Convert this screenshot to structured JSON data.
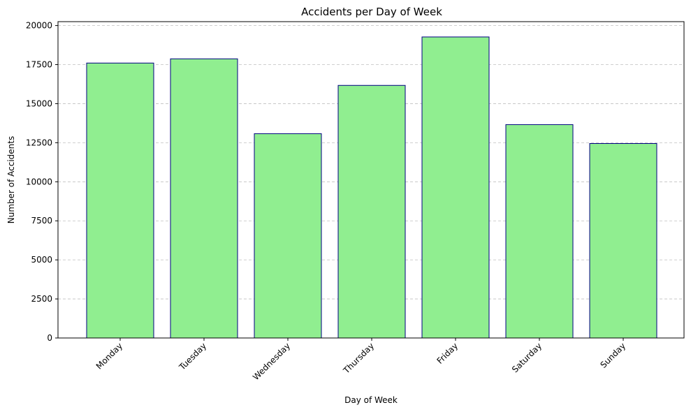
{
  "chart_data": {
    "type": "bar",
    "title": "Accidents per Day of Week",
    "xlabel": "Day of Week",
    "ylabel": "Number of Accidents",
    "categories": [
      "Monday",
      "Tuesday",
      "Wednesday",
      "Thursday",
      "Friday",
      "Saturday",
      "Sunday"
    ],
    "values": [
      17600,
      17870,
      13080,
      16170,
      19270,
      13660,
      12450
    ],
    "ylim": [
      0,
      20250
    ],
    "yticks": [
      0,
      2500,
      5000,
      7500,
      10000,
      12500,
      15000,
      17500,
      20000
    ],
    "ytick_labels": [
      "0",
      "2500",
      "5000",
      "7500",
      "10000",
      "12500",
      "15000",
      "17500",
      "20000"
    ],
    "grid": "y-dashed",
    "bar_color": "#90ee90",
    "bar_edge_color": "#000080"
  }
}
